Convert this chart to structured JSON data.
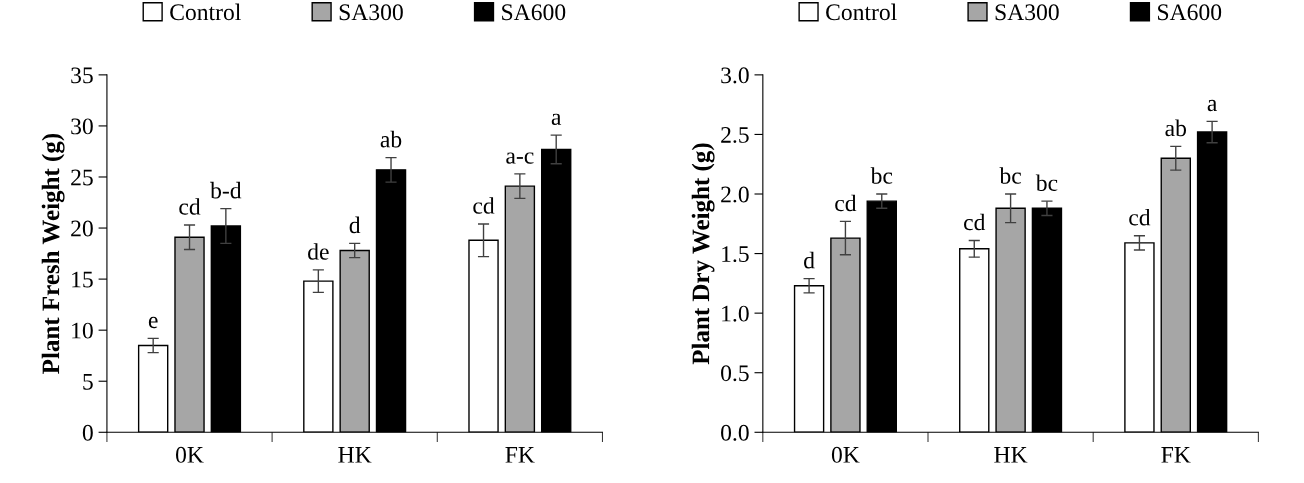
{
  "chart_data": [
    {
      "type": "bar",
      "ylabel": "Plant Fresh Weight (g)",
      "categories": [
        "0K",
        "HK",
        "FK"
      ],
      "ylim": [
        0,
        35
      ],
      "yticks": [
        0,
        5,
        10,
        15,
        20,
        25,
        30,
        35
      ],
      "legend": "top",
      "grid": false,
      "series": [
        {
          "name": "Control",
          "color": "#ffffff",
          "values": [
            8.5,
            14.8,
            18.8
          ],
          "errors": [
            0.7,
            1.1,
            1.6
          ],
          "value_labels": [
            "e",
            "de",
            "cd"
          ]
        },
        {
          "name": "SA300",
          "color": "#a6a6a6",
          "values": [
            19.1,
            17.8,
            24.1
          ],
          "errors": [
            1.2,
            0.7,
            1.2
          ],
          "value_labels": [
            "cd",
            "d",
            "a-c"
          ]
        },
        {
          "name": "SA600",
          "color": "#000000",
          "values": [
            20.2,
            25.7,
            27.7
          ],
          "errors": [
            1.7,
            1.2,
            1.4
          ],
          "value_labels": [
            "b-d",
            "ab",
            "a"
          ]
        }
      ]
    },
    {
      "type": "bar",
      "ylabel": "Plant Dry Weight (g)",
      "categories": [
        "0K",
        "HK",
        "FK"
      ],
      "ylim": [
        0,
        3
      ],
      "yticks": [
        {
          "value": 0,
          "label": "0.0"
        },
        {
          "value": 0.5,
          "label": "0.5"
        },
        {
          "value": 1,
          "label": "1.0"
        },
        {
          "value": 1.5,
          "label": "1.5"
        },
        {
          "value": 2,
          "label": "2.0"
        },
        {
          "value": 2.5,
          "label": "2.5"
        },
        {
          "value": 3,
          "label": "3.0"
        }
      ],
      "legend": "top",
      "grid": false,
      "series": [
        {
          "name": "Control",
          "color": "#ffffff",
          "values": [
            1.23,
            1.54,
            1.59
          ],
          "errors": [
            0.06,
            0.07,
            0.06
          ],
          "value_labels": [
            "d",
            "cd",
            "cd"
          ]
        },
        {
          "name": "SA300",
          "color": "#a6a6a6",
          "values": [
            1.63,
            1.88,
            2.3
          ],
          "errors": [
            0.14,
            0.12,
            0.1
          ],
          "value_labels": [
            "cd",
            "bc",
            "ab"
          ]
        },
        {
          "name": "SA600",
          "color": "#000000",
          "values": [
            1.94,
            1.88,
            2.52
          ],
          "errors": [
            0.06,
            0.06,
            0.09
          ],
          "value_labels": [
            "bc",
            "bc",
            "a"
          ]
        }
      ]
    }
  ]
}
